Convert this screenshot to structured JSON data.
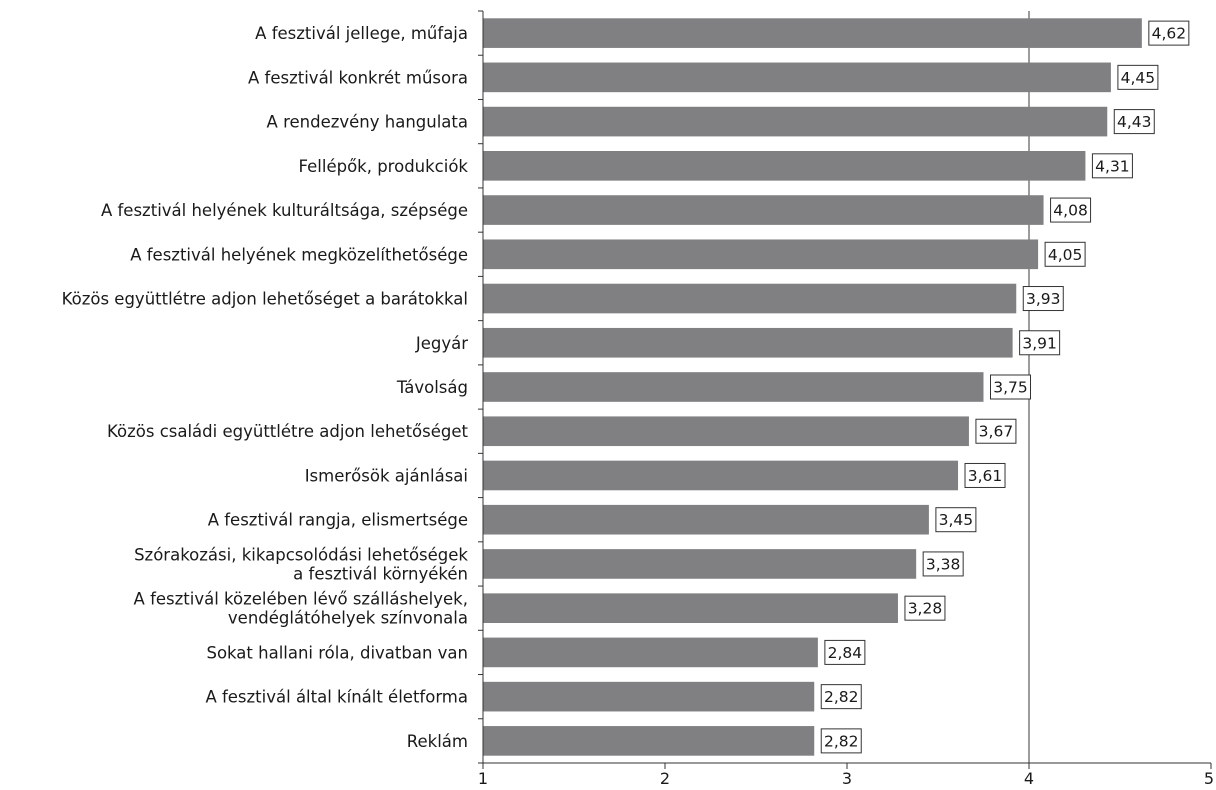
{
  "chart_data": {
    "type": "bar",
    "orientation": "horizontal",
    "categories": [
      [
        "A fesztivál jellege, műfaja"
      ],
      [
        "A fesztivál konkrét műsora"
      ],
      [
        "A rendezvény hangulata"
      ],
      [
        "Fellépők, produkciók"
      ],
      [
        "A fesztivál helyének kulturáltsága, szépsége"
      ],
      [
        "A fesztivál helyének megközelíthetősége"
      ],
      [
        "Közös együttlétre adjon lehetőséget a barátokkal"
      ],
      [
        "Jegyár"
      ],
      [
        "Távolság"
      ],
      [
        "Közös családi együttlétre adjon lehetőséget"
      ],
      [
        "Ismerősök ajánlásai"
      ],
      [
        "A fesztivál rangja, elismertsége"
      ],
      [
        "Szórakozási, kikapcsolódási lehetőségek",
        "a fesztivál környékén"
      ],
      [
        "A fesztivál közelében lévő szálláshelyek,",
        "vendéglátóhelyek színvonala"
      ],
      [
        "Sokat hallani róla, divatban van"
      ],
      [
        "A fesztivál által kínált életforma"
      ],
      [
        "Reklám"
      ]
    ],
    "values": [
      4.62,
      4.45,
      4.43,
      4.31,
      4.08,
      4.05,
      3.93,
      3.91,
      3.75,
      3.67,
      3.61,
      3.45,
      3.38,
      3.28,
      2.84,
      2.82,
      2.82
    ],
    "value_labels": [
      "4,62",
      "4,45",
      "4,43",
      "4,31",
      "4,08",
      "4,05",
      "3,93",
      "3,91",
      "3,75",
      "3,67",
      "3,61",
      "3,45",
      "3,38",
      "3,28",
      "2,84",
      "2,82",
      "2,82"
    ],
    "x_ticks": [
      1,
      2,
      3,
      4,
      5
    ],
    "x_tick_labels": [
      "1",
      "2",
      "3",
      "4",
      "5"
    ],
    "xlim": [
      1,
      5
    ],
    "reference_line": 4,
    "bar_color": "#808083",
    "grid": false,
    "legend": "none"
  }
}
